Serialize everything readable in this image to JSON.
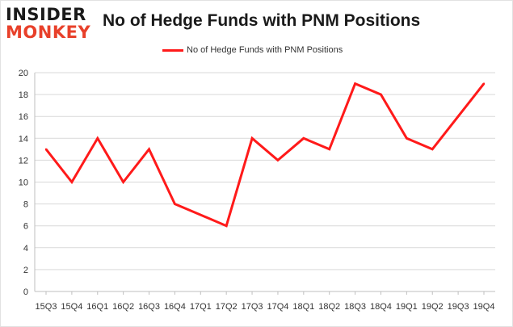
{
  "brand": {
    "logo_top": "INSIDER",
    "logo_bottom": "MONKEY"
  },
  "chart_data": {
    "type": "line",
    "title": "No of Hedge Funds with PNM Positions",
    "xlabel": "",
    "ylabel": "",
    "categories": [
      "15Q3",
      "15Q4",
      "16Q1",
      "16Q2",
      "16Q3",
      "16Q4",
      "17Q1",
      "17Q2",
      "17Q3",
      "17Q4",
      "18Q1",
      "18Q2",
      "18Q3",
      "18Q4",
      "19Q1",
      "19Q2",
      "19Q3",
      "19Q4"
    ],
    "series": [
      {
        "name": "No of Hedge Funds with PNM Positions",
        "values": [
          13,
          10,
          14,
          10,
          13,
          8,
          7,
          6,
          14,
          12,
          14,
          13,
          19,
          18,
          14,
          13,
          16,
          19
        ],
        "color": "#ff1a1a"
      }
    ],
    "ylim": [
      0,
      20
    ],
    "yticks": [
      0,
      2,
      4,
      6,
      8,
      10,
      12,
      14,
      16,
      18,
      20
    ],
    "grid": "horizontal",
    "legend": "top-center"
  }
}
